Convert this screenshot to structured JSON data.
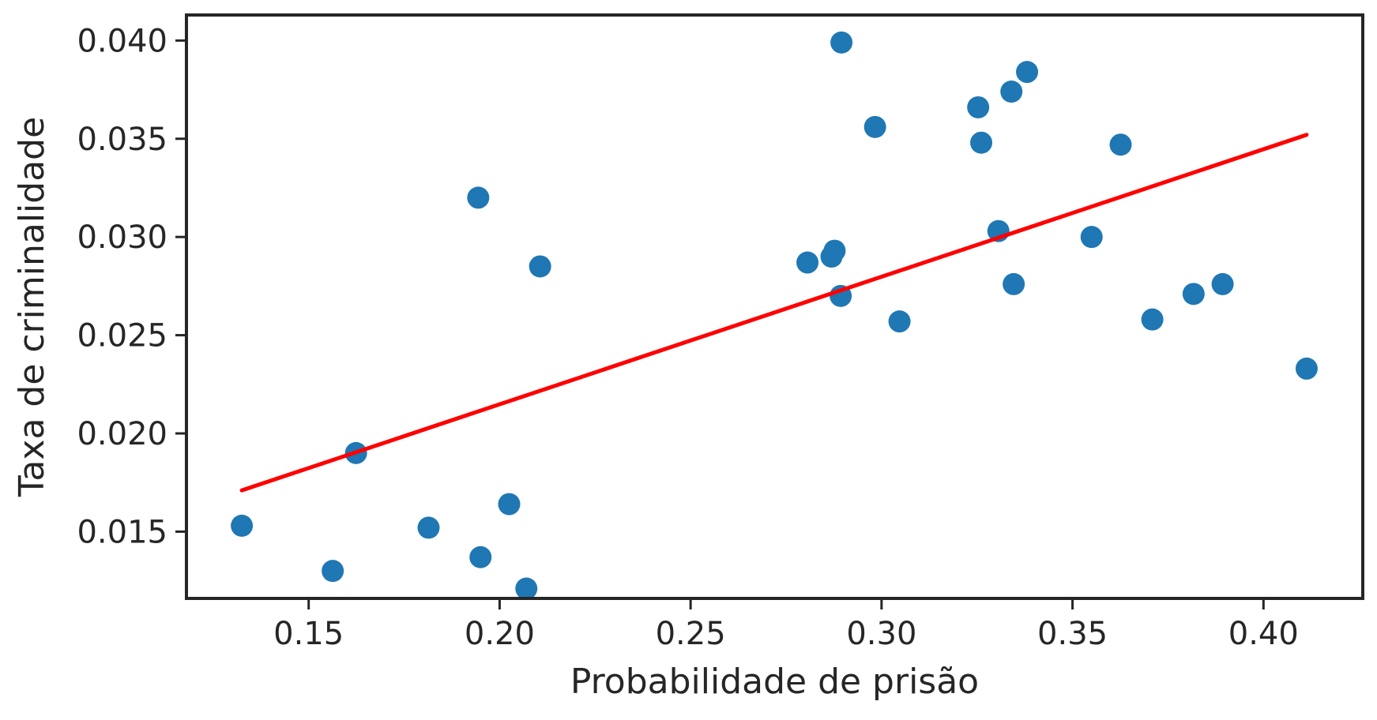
{
  "chart_data": {
    "type": "scatter",
    "xlabel": "Probabilidade de prisão",
    "ylabel": "Taxa de criminalidade",
    "xlim": [
      0.118,
      0.426
    ],
    "ylim": [
      0.0116,
      0.0413
    ],
    "xticks": [
      "0.15",
      "0.20",
      "0.25",
      "0.30",
      "0.35",
      "0.40"
    ],
    "yticks": [
      "0.015",
      "0.020",
      "0.025",
      "0.030",
      "0.035",
      "0.040"
    ],
    "points": [
      {
        "x": 0.1325,
        "y": 0.0153
      },
      {
        "x": 0.1563,
        "y": 0.013
      },
      {
        "x": 0.1624,
        "y": 0.019
      },
      {
        "x": 0.1814,
        "y": 0.0152
      },
      {
        "x": 0.1944,
        "y": 0.032
      },
      {
        "x": 0.195,
        "y": 0.0137
      },
      {
        "x": 0.2025,
        "y": 0.0164
      },
      {
        "x": 0.207,
        "y": 0.0121
      },
      {
        "x": 0.2106,
        "y": 0.0285
      },
      {
        "x": 0.2806,
        "y": 0.0287
      },
      {
        "x": 0.2869,
        "y": 0.029
      },
      {
        "x": 0.2877,
        "y": 0.0293
      },
      {
        "x": 0.2893,
        "y": 0.027
      },
      {
        "x": 0.2895,
        "y": 0.0399
      },
      {
        "x": 0.2983,
        "y": 0.0356
      },
      {
        "x": 0.3047,
        "y": 0.0257
      },
      {
        "x": 0.3253,
        "y": 0.0366
      },
      {
        "x": 0.3261,
        "y": 0.0348
      },
      {
        "x": 0.3306,
        "y": 0.0303
      },
      {
        "x": 0.334,
        "y": 0.0374
      },
      {
        "x": 0.3346,
        "y": 0.0276
      },
      {
        "x": 0.3381,
        "y": 0.0384
      },
      {
        "x": 0.355,
        "y": 0.03
      },
      {
        "x": 0.3626,
        "y": 0.0347
      },
      {
        "x": 0.3709,
        "y": 0.0258
      },
      {
        "x": 0.3817,
        "y": 0.0271
      },
      {
        "x": 0.3893,
        "y": 0.0276
      },
      {
        "x": 0.4113,
        "y": 0.0233
      }
    ],
    "fit_line": {
      "x": [
        0.1325,
        0.4113
      ],
      "y": [
        0.0171,
        0.0352
      ]
    },
    "grid": false,
    "colors": {
      "points": "#1f77b4",
      "fit_line": "#ff0000",
      "axes": "#262626"
    }
  }
}
